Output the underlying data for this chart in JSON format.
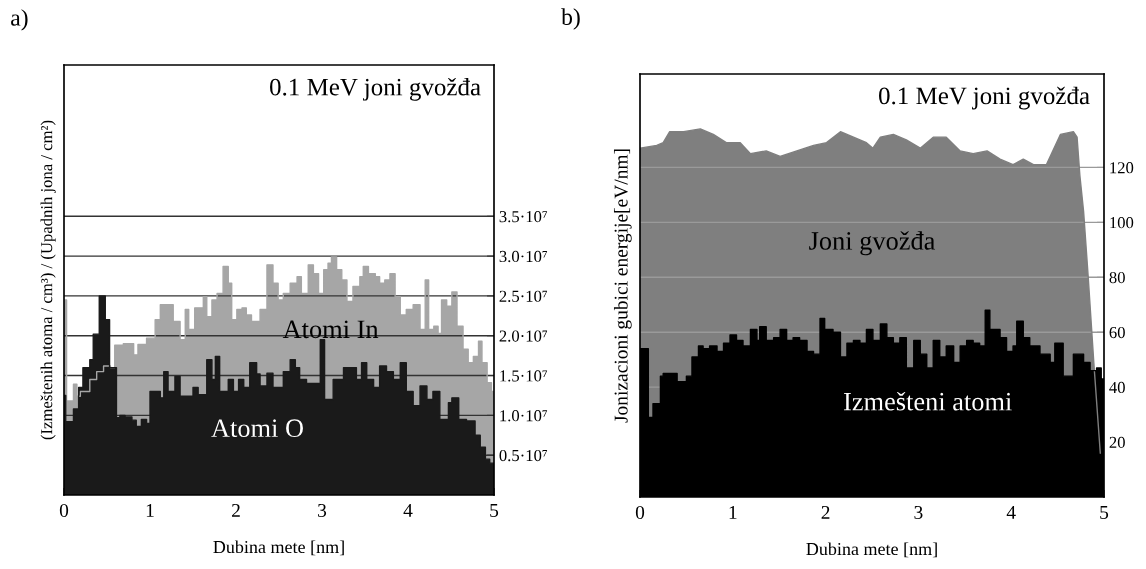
{
  "chart_data": [
    {
      "type": "area",
      "title": "0.1 MeV joni gvožđa",
      "annotations": [
        "a)"
      ],
      "xlabel": "Dubina mete [nm]",
      "ylabel": "(Izmeštenih atoma / cm³) / (Upadnih jona / cm²)",
      "xlim": [
        0,
        5
      ],
      "xticks": [
        0,
        1,
        2,
        3,
        4,
        5
      ],
      "ylim": [
        0,
        54000000.0
      ],
      "yticks": [
        {
          "value": 5000000.0,
          "label": "0.5·10⁷"
        },
        {
          "value": 10000000.0,
          "label": "1.0·10⁷"
        },
        {
          "value": 15000000.0,
          "label": "1.5·10⁷"
        },
        {
          "value": 20000000.0,
          "label": "2.0·10⁷"
        },
        {
          "value": 25000000.0,
          "label": "2.5·10⁷"
        },
        {
          "value": 30000000.0,
          "label": "3.0·10⁷"
        },
        {
          "value": 35000000.0,
          "label": "3.5·10⁷"
        }
      ],
      "grid": "y",
      "legend": false,
      "series": [
        {
          "name": "Atomi In",
          "color": "#a6a6a6",
          "x": [
            0,
            0.03,
            0.03,
            0.11,
            0.11,
            0.15,
            0.15,
            0.19,
            0.19,
            0.3,
            0.3,
            0.38,
            0.38,
            0.46,
            0.46,
            0.54,
            0.54,
            0.59,
            0.59,
            0.69,
            0.69,
            0.81,
            0.81,
            0.86,
            0.86,
            0.96,
            0.96,
            1.06,
            1.06,
            1.12,
            1.12,
            1.27,
            1.27,
            1.35,
            1.35,
            1.41,
            1.41,
            1.45,
            1.45,
            1.52,
            1.52,
            1.62,
            1.62,
            1.66,
            1.66,
            1.72,
            1.72,
            1.78,
            1.78,
            1.85,
            1.85,
            1.91,
            1.91,
            1.95,
            1.95,
            2.01,
            2.01,
            2.07,
            2.07,
            2.12,
            2.12,
            2.18,
            2.18,
            2.28,
            2.28,
            2.36,
            2.36,
            2.43,
            2.43,
            2.49,
            2.49,
            2.55,
            2.55,
            2.63,
            2.63,
            2.71,
            2.71,
            2.76,
            2.76,
            2.84,
            2.84,
            2.9,
            2.9,
            2.96,
            2.96,
            3.02,
            3.02,
            3.07,
            3.07,
            3.11,
            3.11,
            3.17,
            3.17,
            3.23,
            3.23,
            3.29,
            3.29,
            3.36,
            3.36,
            3.44,
            3.44,
            3.48,
            3.48,
            3.54,
            3.54,
            3.62,
            3.62,
            3.67,
            3.67,
            3.73,
            3.73,
            3.79,
            3.79,
            3.85,
            3.85,
            3.91,
            3.91,
            3.98,
            3.98,
            4.06,
            4.06,
            4.14,
            4.14,
            4.2,
            4.2,
            4.24,
            4.24,
            4.3,
            4.3,
            4.35,
            4.35,
            4.39,
            4.39,
            4.45,
            4.45,
            4.51,
            4.51,
            4.57,
            4.57,
            4.64,
            4.64,
            4.7,
            4.7,
            4.76,
            4.76,
            4.82,
            4.82,
            4.86,
            4.86,
            4.92,
            4.92,
            4.97,
            4.97,
            5.0
          ],
          "values": [
            24500000.0,
            24500000.0,
            11800000.0,
            11800000.0,
            13900000.0,
            13900000.0,
            12400000.0,
            12400000.0,
            13000000.0,
            13000000.0,
            14500000.0,
            14500000.0,
            15500000.0,
            15500000.0,
            16200000.0,
            16200000.0,
            16000000.0,
            16000000.0,
            18800000.0,
            18800000.0,
            19000000.0,
            19000000.0,
            17600000.0,
            17600000.0,
            18900000.0,
            18900000.0,
            19700000.0,
            19700000.0,
            22000000.0,
            22000000.0,
            23900000.0,
            23900000.0,
            21800000.0,
            21800000.0,
            19500000.0,
            19500000.0,
            23300000.0,
            23300000.0,
            20800000.0,
            20800000.0,
            23500000.0,
            23500000.0,
            24900000.0,
            24900000.0,
            22400000.0,
            22400000.0,
            24500000.0,
            24500000.0,
            25300000.0,
            25300000.0,
            28700000.0,
            28700000.0,
            26600000.0,
            26600000.0,
            22000000.0,
            22000000.0,
            23300000.0,
            23300000.0,
            23500000.0,
            23500000.0,
            22600000.0,
            22600000.0,
            21800000.0,
            21800000.0,
            23300000.0,
            23300000.0,
            28900000.0,
            28900000.0,
            26600000.0,
            26600000.0,
            24500000.0,
            24500000.0,
            25300000.0,
            25300000.0,
            26600000.0,
            26600000.0,
            27400000.0,
            27400000.0,
            25300000.0,
            25300000.0,
            28900000.0,
            28900000.0,
            27800000.0,
            27800000.0,
            25300000.0,
            25300000.0,
            28300000.0,
            28300000.0,
            29100000.0,
            29100000.0,
            29900000.0,
            29900000.0,
            28300000.0,
            28300000.0,
            27000000.0,
            27000000.0,
            24300000.0,
            24300000.0,
            26200000.0,
            26200000.0,
            27400000.0,
            27400000.0,
            28700000.0,
            28700000.0,
            27800000.0,
            27800000.0,
            27400000.0,
            27400000.0,
            26600000.0,
            26600000.0,
            27000000.0,
            27000000.0,
            27800000.0,
            27800000.0,
            24900000.0,
            24900000.0,
            22600000.0,
            22600000.0,
            23300000.0,
            23300000.0,
            23900000.0,
            23900000.0,
            20800000.0,
            20800000.0,
            27000000.0,
            27000000.0,
            20800000.0,
            20800000.0,
            21200000.0,
            21200000.0,
            20300000.0,
            20300000.0,
            24500000.0,
            24500000.0,
            23700000.0,
            23700000.0,
            25500000.0,
            25500000.0,
            21200000.0,
            21200000.0,
            18300000.0,
            18300000.0,
            16600000.0,
            16600000.0,
            17400000.0,
            17400000.0,
            19300000.0,
            19300000.0,
            16600000.0,
            16600000.0,
            14100000.0,
            14100000.0,
            13000000.0,
            13000000.0
          ]
        },
        {
          "name": "Atomi O",
          "color": "#1a1a1a",
          "x": [
            0,
            0.02,
            0.02,
            0.11,
            0.11,
            0.17,
            0.17,
            0.22,
            0.22,
            0.3,
            0.3,
            0.34,
            0.34,
            0.41,
            0.41,
            0.48,
            0.48,
            0.53,
            0.53,
            0.61,
            0.61,
            0.65,
            0.65,
            0.71,
            0.71,
            0.79,
            0.79,
            0.84,
            0.84,
            0.9,
            0.9,
            0.96,
            0.96,
            1.0,
            1.0,
            1.12,
            1.12,
            1.16,
            1.16,
            1.21,
            1.21,
            1.29,
            1.29,
            1.35,
            1.35,
            1.5,
            1.5,
            1.56,
            1.56,
            1.66,
            1.66,
            1.72,
            1.72,
            1.76,
            1.76,
            1.81,
            1.81,
            1.91,
            1.91,
            1.97,
            1.97,
            2.03,
            2.03,
            2.09,
            2.09,
            2.16,
            2.16,
            2.24,
            2.24,
            2.28,
            2.28,
            2.36,
            2.36,
            2.43,
            2.43,
            2.55,
            2.55,
            2.63,
            2.63,
            2.69,
            2.69,
            2.74,
            2.74,
            2.82,
            2.82,
            2.98,
            2.98,
            3.03,
            3.03,
            3.13,
            3.13,
            3.25,
            3.25,
            3.34,
            3.34,
            3.4,
            3.4,
            3.46,
            3.46,
            3.52,
            3.52,
            3.6,
            3.6,
            3.67,
            3.67,
            3.75,
            3.75,
            3.83,
            3.83,
            3.91,
            3.91,
            3.98,
            3.98,
            4.06,
            4.06,
            4.14,
            4.14,
            4.22,
            4.22,
            4.29,
            4.29,
            4.37,
            4.37,
            4.47,
            4.47,
            4.51,
            4.51,
            4.59,
            4.59,
            4.68,
            4.68,
            4.78,
            4.78,
            4.84,
            4.84,
            4.9,
            4.9,
            4.95,
            4.95,
            5.0
          ],
          "values": [
            12500000.0,
            12500000.0,
            9200000.0,
            9200000.0,
            10800000.0,
            10800000.0,
            13500000.0,
            13500000.0,
            16000000.0,
            16000000.0,
            17000000.0,
            17000000.0,
            20200000.0,
            20200000.0,
            25000000.0,
            25000000.0,
            22000000.0,
            22000000.0,
            16000000.0,
            16000000.0,
            9700000.0,
            9700000.0,
            10000000.0,
            10000000.0,
            9800000.0,
            9800000.0,
            9400000.0,
            9400000.0,
            8600000.0,
            8600000.0,
            9500000.0,
            9500000.0,
            9000000.0,
            9000000.0,
            13000000.0,
            13000000.0,
            12200000.0,
            12200000.0,
            15500000.0,
            15500000.0,
            13000000.0,
            13000000.0,
            14900000.0,
            14900000.0,
            12400000.0,
            12400000.0,
            13500000.0,
            13500000.0,
            12600000.0,
            12600000.0,
            17000000.0,
            17000000.0,
            14500000.0,
            14500000.0,
            17400000.0,
            17400000.0,
            13000000.0,
            13000000.0,
            14500000.0,
            14500000.0,
            13000000.0,
            13000000.0,
            14500000.0,
            14500000.0,
            13500000.0,
            13500000.0,
            16600000.0,
            16600000.0,
            15200000.0,
            15200000.0,
            13700000.0,
            13700000.0,
            15300000.0,
            15300000.0,
            13500000.0,
            13500000.0,
            15500000.0,
            15500000.0,
            17000000.0,
            17000000.0,
            16000000.0,
            16000000.0,
            14500000.0,
            14500000.0,
            14000000.0,
            14000000.0,
            19500000.0,
            19500000.0,
            12000000.0,
            12000000.0,
            14500000.0,
            14500000.0,
            16000000.0,
            16000000.0,
            16000000.0,
            16000000.0,
            14500000.0,
            14500000.0,
            16600000.0,
            16600000.0,
            14500000.0,
            14500000.0,
            13500000.0,
            13500000.0,
            16200000.0,
            16200000.0,
            15500000.0,
            15500000.0,
            14500000.0,
            14500000.0,
            16600000.0,
            16600000.0,
            13000000.0,
            13000000.0,
            11200000.0,
            11200000.0,
            13700000.0,
            13700000.0,
            12000000.0,
            12000000.0,
            13000000.0,
            13000000.0,
            9500000.0,
            9500000.0,
            11600000.0,
            11600000.0,
            12200000.0,
            12200000.0,
            9500000.0,
            9500000.0,
            9300000.0,
            9300000.0,
            7500000.0,
            7500000.0,
            6000000.0,
            6000000.0,
            4500000.0,
            4500000.0,
            4000000.0,
            4000000.0
          ]
        }
      ]
    },
    {
      "type": "area",
      "title": "0.1 MeV joni gvožđa",
      "annotations": [
        "b)"
      ],
      "xlabel": "Dubina mete [nm]",
      "ylabel": "Jonizacioni gubici energije[eV/nm]",
      "xlim": [
        0,
        5
      ],
      "xticks": [
        0,
        1,
        2,
        3,
        4,
        5
      ],
      "ylim": [
        0,
        154
      ],
      "yticks": [
        20,
        40,
        60,
        80,
        100,
        120
      ],
      "grid": "y",
      "legend": false,
      "series": [
        {
          "name": "Joni gvožđa",
          "color": "#7f7f7f",
          "x": [
            0,
            0.18,
            0.25,
            0.32,
            0.47,
            0.65,
            0.79,
            0.93,
            1.08,
            1.19,
            1.36,
            1.51,
            1.69,
            1.87,
            2.01,
            2.16,
            2.3,
            2.44,
            2.51,
            2.59,
            2.73,
            2.87,
            3.02,
            3.16,
            3.3,
            3.45,
            3.59,
            3.74,
            3.88,
            4.02,
            4.13,
            4.24,
            4.38,
            4.53,
            4.67,
            4.71,
            4.74,
            4.78,
            4.83,
            4.89,
            4.96
          ],
          "values": [
            127,
            128,
            129,
            133,
            133,
            134,
            132,
            129,
            129,
            125,
            126,
            124,
            126,
            128,
            129,
            133,
            131,
            129,
            127,
            131,
            132,
            130,
            127,
            131,
            131,
            126,
            125,
            126,
            123,
            121,
            123,
            121,
            121,
            132,
            133,
            131,
            117,
            104,
            80,
            49,
            16
          ]
        },
        {
          "name": "Izmešteni atomi",
          "color": "#000000",
          "x": [
            0,
            0.09,
            0.09,
            0.14,
            0.14,
            0.22,
            0.22,
            0.25,
            0.25,
            0.4,
            0.4,
            0.5,
            0.5,
            0.56,
            0.56,
            0.63,
            0.63,
            0.68,
            0.68,
            0.75,
            0.75,
            0.83,
            0.83,
            0.9,
            0.9,
            0.97,
            0.97,
            1.04,
            1.04,
            1.11,
            1.11,
            1.19,
            1.19,
            1.26,
            1.26,
            1.29,
            1.29,
            1.36,
            1.36,
            1.44,
            1.44,
            1.51,
            1.51,
            1.58,
            1.58,
            1.65,
            1.65,
            1.72,
            1.72,
            1.8,
            1.8,
            1.87,
            1.87,
            1.94,
            1.94,
            1.99,
            1.99,
            2.08,
            2.08,
            2.16,
            2.16,
            2.23,
            2.23,
            2.3,
            2.3,
            2.37,
            2.37,
            2.44,
            2.44,
            2.51,
            2.51,
            2.59,
            2.59,
            2.66,
            2.66,
            2.73,
            2.73,
            2.8,
            2.8,
            2.87,
            2.87,
            2.95,
            2.95,
            3.02,
            3.02,
            3.09,
            3.09,
            3.16,
            3.16,
            3.23,
            3.23,
            3.3,
            3.3,
            3.38,
            3.38,
            3.45,
            3.45,
            3.52,
            3.52,
            3.59,
            3.59,
            3.66,
            3.66,
            3.72,
            3.72,
            3.77,
            3.77,
            3.88,
            3.88,
            3.95,
            3.95,
            4.02,
            4.02,
            4.06,
            4.06,
            4.13,
            4.13,
            4.2,
            4.2,
            4.31,
            4.31,
            4.42,
            4.42,
            4.47,
            4.47,
            4.56,
            4.56,
            4.67,
            4.67,
            4.78,
            4.78,
            4.85,
            4.85,
            4.92,
            4.92,
            4.97,
            4.97,
            5.0
          ],
          "values": [
            54,
            54,
            29,
            29,
            34,
            34,
            44,
            44,
            45,
            45,
            42,
            42,
            44,
            44,
            51,
            51,
            55,
            55,
            54,
            54,
            55,
            55,
            53,
            53,
            56,
            56,
            59,
            59,
            57,
            57,
            55,
            55,
            61,
            61,
            57,
            57,
            62,
            62,
            57,
            57,
            58,
            58,
            61,
            61,
            57,
            57,
            58,
            58,
            57,
            57,
            53,
            53,
            52,
            52,
            65,
            65,
            61,
            61,
            60,
            60,
            51,
            51,
            56,
            56,
            57,
            57,
            56,
            56,
            61,
            61,
            57,
            57,
            63,
            63,
            58,
            58,
            56,
            56,
            58,
            58,
            47,
            47,
            57,
            57,
            52,
            52,
            47,
            47,
            57,
            57,
            51,
            51,
            55,
            55,
            49,
            49,
            55,
            55,
            57,
            57,
            56,
            56,
            55,
            55,
            68,
            68,
            61,
            61,
            58,
            58,
            53,
            53,
            55,
            55,
            64,
            64,
            58,
            58,
            55,
            55,
            52,
            52,
            49,
            49,
            56,
            56,
            44,
            44,
            52,
            52,
            49,
            49,
            46,
            46,
            47,
            47,
            43,
            43
          ]
        }
      ]
    }
  ]
}
